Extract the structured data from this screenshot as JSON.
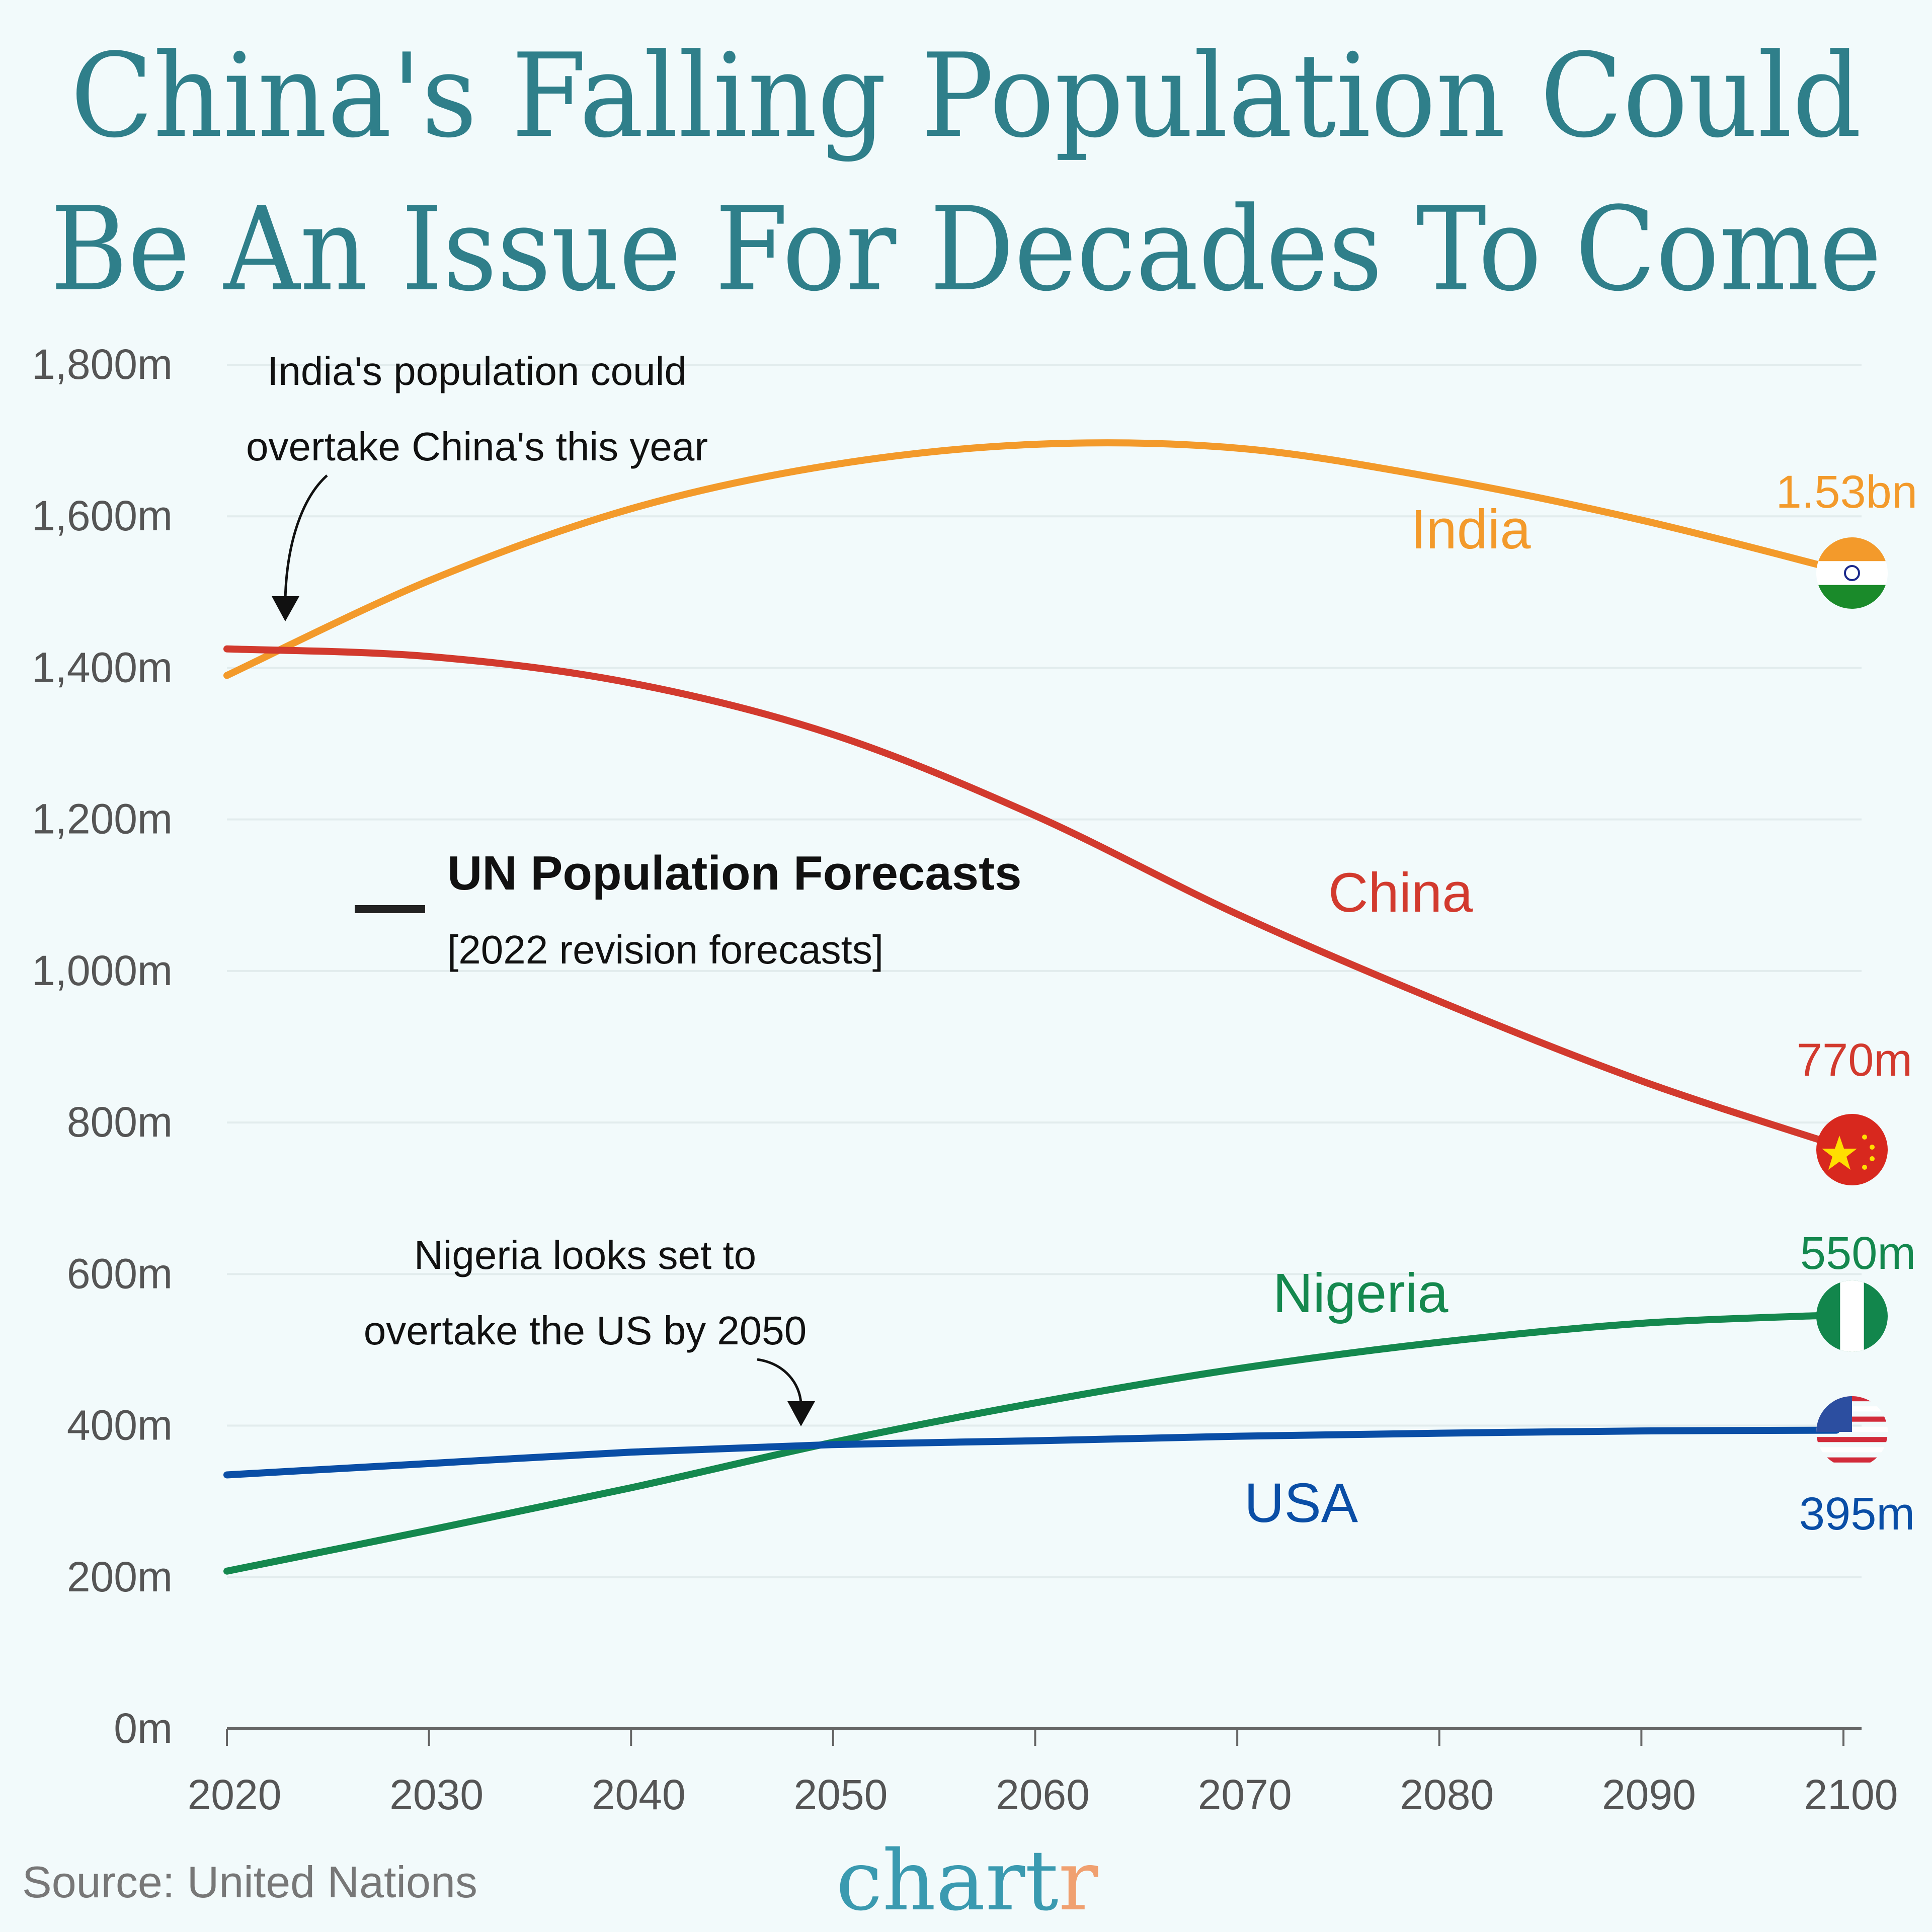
{
  "title_lines": [
    "China's Falling Population Could",
    "Be An Issue For Decades To Come"
  ],
  "source": "Source: United Nations",
  "logo": {
    "main": "chart",
    "accent": "r",
    "main_color": "#3a9ab0",
    "accent_color": "#f0a070"
  },
  "legend": {
    "title": "UN Population Forecasts",
    "subtitle": "[2022 revision forecasts]"
  },
  "annotations": {
    "india": [
      "India's population could",
      "overtake China's this year"
    ],
    "nigeria": [
      "Nigeria looks set to",
      "overtake the US by 2050"
    ]
  },
  "chart_data": {
    "type": "line",
    "title": "China's Falling Population Could Be An Issue For Decades To Come",
    "xlabel": "",
    "ylabel": "",
    "xlim": [
      2020,
      2100
    ],
    "ylim": [
      0,
      1800
    ],
    "x_ticks": [
      "2020",
      "2030",
      "2040",
      "2050",
      "2060",
      "2070",
      "2080",
      "2090",
      "2100"
    ],
    "y_ticks": [
      "0m",
      "200m",
      "400m",
      "600m",
      "800m",
      "1,000m",
      "1,200m",
      "1,400m",
      "1,600m",
      "1,800m"
    ],
    "grid": true,
    "x": [
      2020,
      2030,
      2040,
      2050,
      2060,
      2070,
      2080,
      2090,
      2100
    ],
    "series": [
      {
        "name": "India",
        "color": "#f39a2b",
        "flag": "india-flag",
        "end_label": "1.53bn",
        "values": [
          1390,
          1515,
          1610,
          1668,
          1695,
          1690,
          1650,
          1595,
          1530
        ]
      },
      {
        "name": "China",
        "color": "#d23a2e",
        "flag": "china-flag",
        "end_label": "770m",
        "values": [
          1425,
          1415,
          1380,
          1312,
          1205,
          1075,
          960,
          855,
          770
        ]
      },
      {
        "name": "Nigeria",
        "color": "#14884e",
        "flag": "nigeria-flag",
        "end_label": "550m",
        "values": [
          208,
          262,
          318,
          378,
          430,
          475,
          510,
          535,
          546
        ]
      },
      {
        "name": "USA",
        "color": "#0a4ea6",
        "flag": "usa-flag",
        "end_label": "395m",
        "values": [
          335,
          350,
          365,
          375,
          380,
          386,
          390,
          393,
          394
        ]
      }
    ]
  }
}
